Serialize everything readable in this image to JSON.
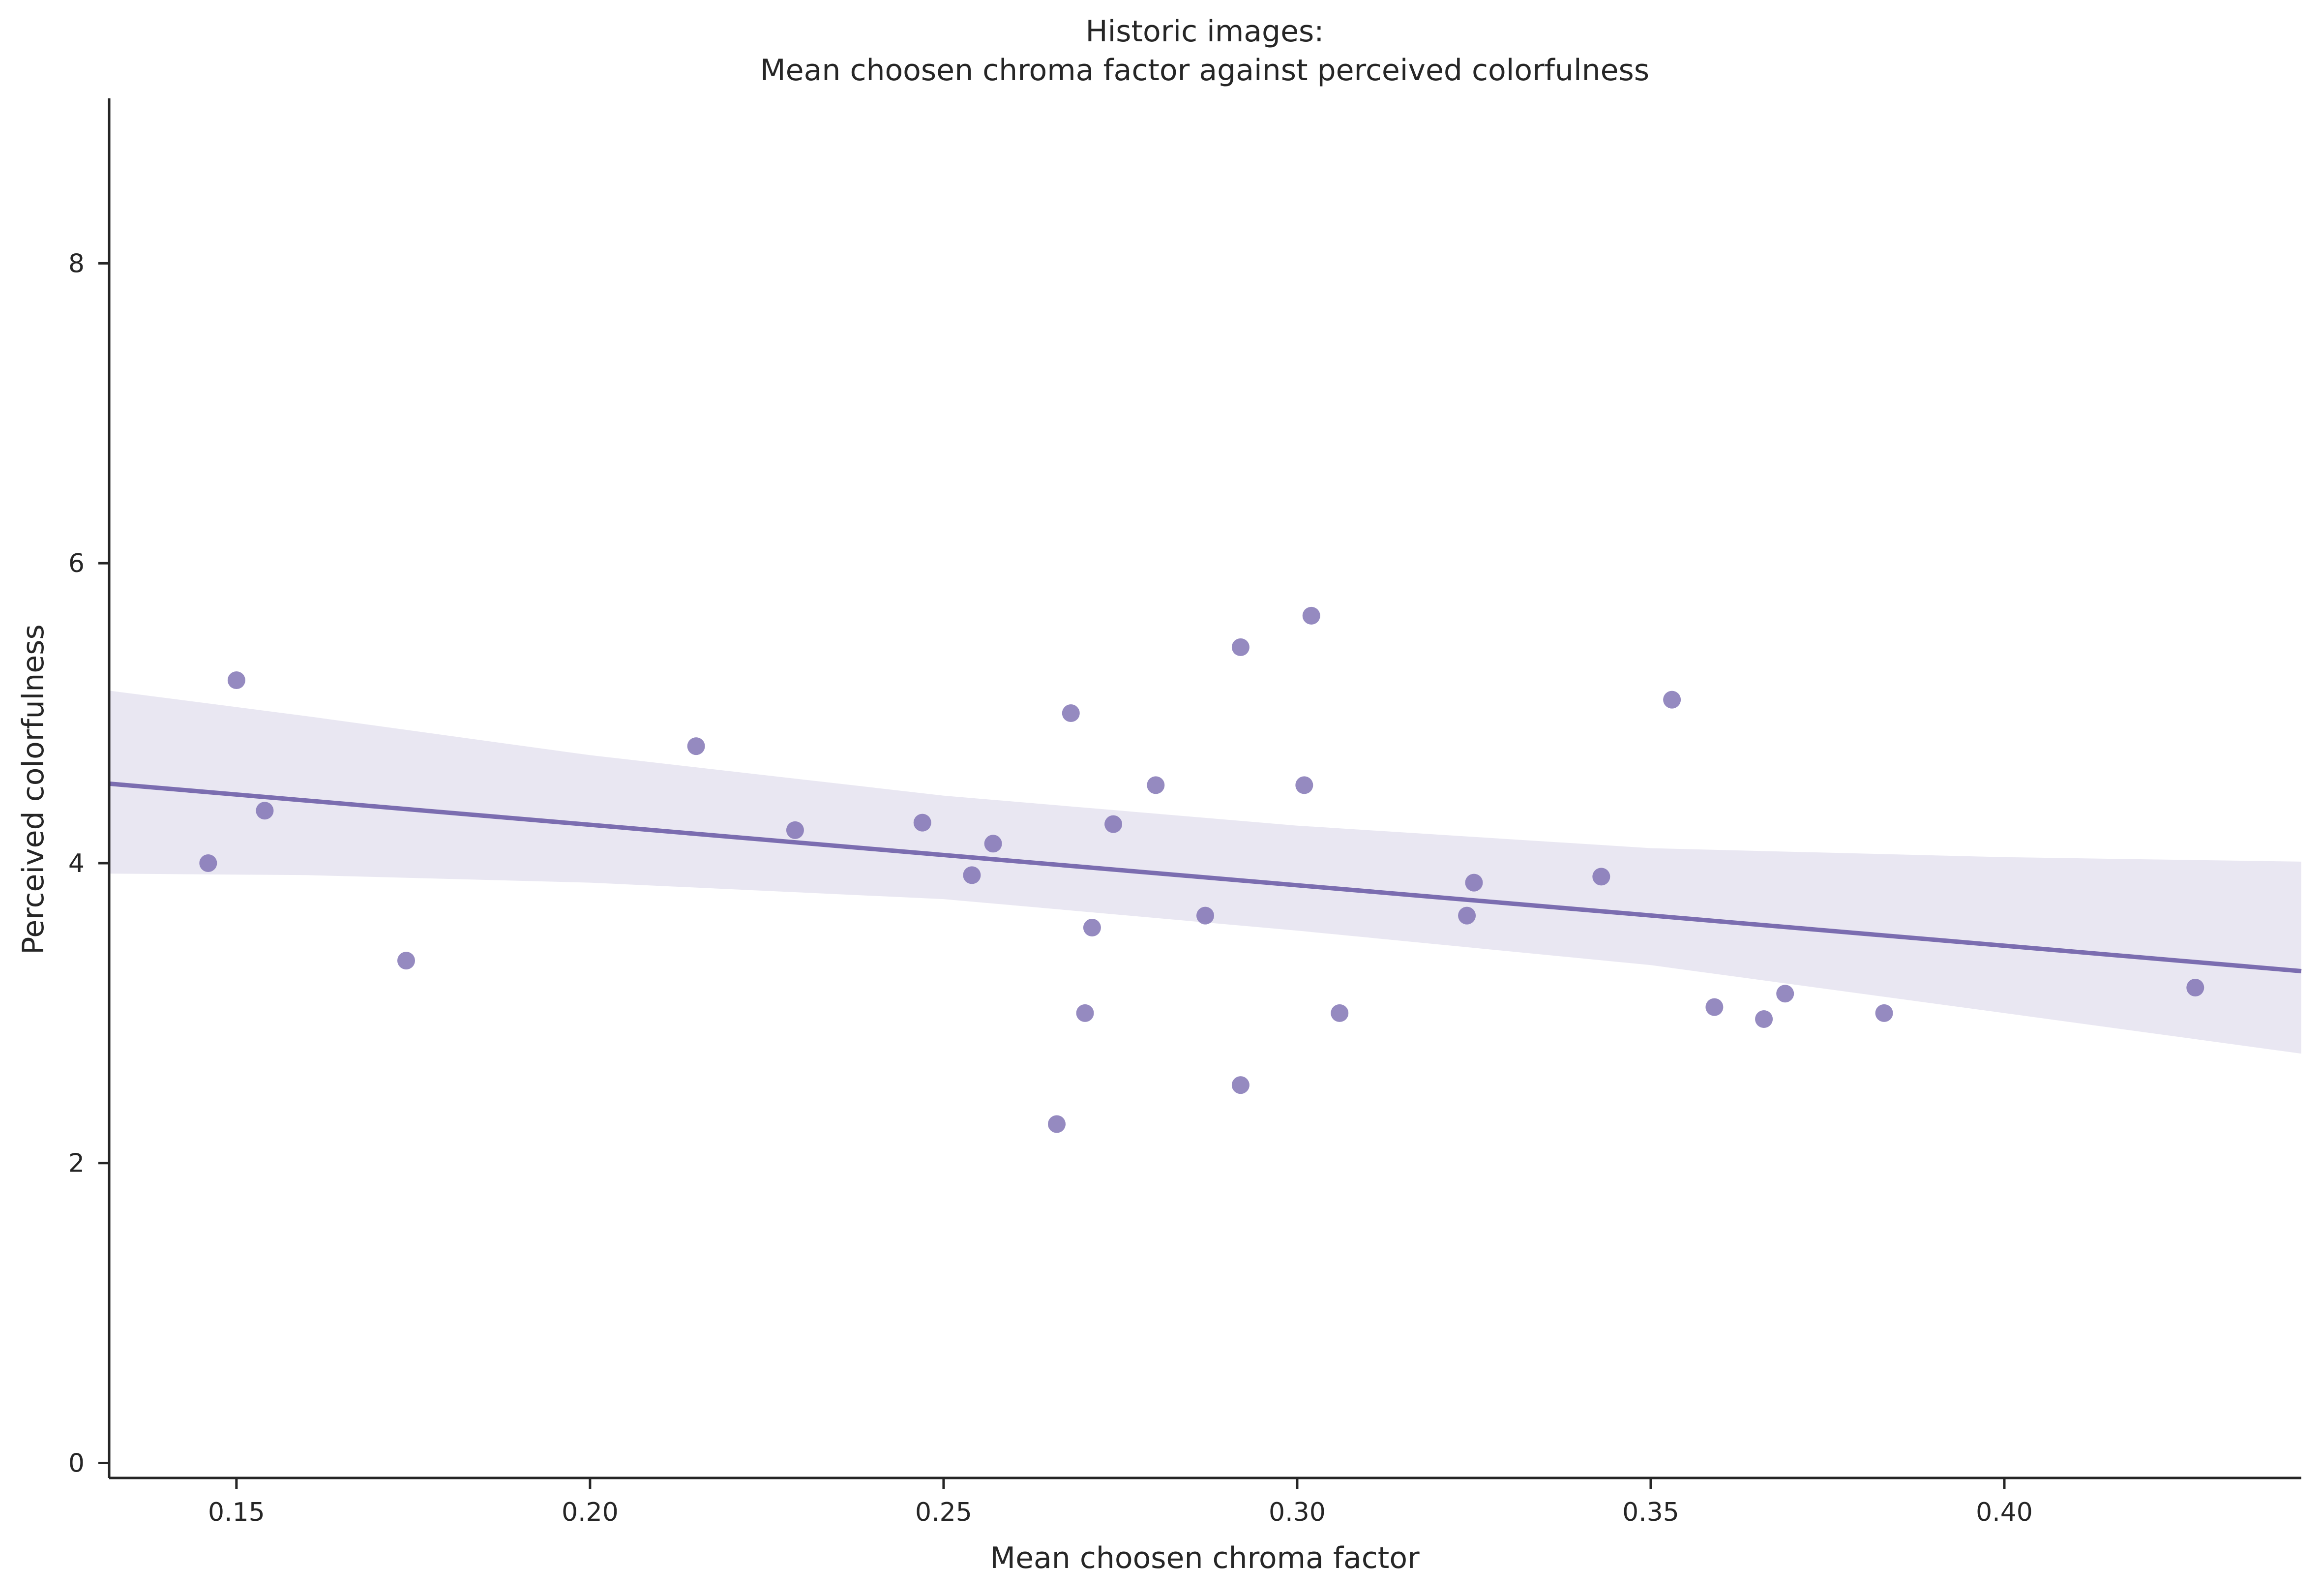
{
  "chart_data": {
    "type": "scatter",
    "title": [
      "Historic images:",
      "Mean choosen chroma factor against perceived colorfulness"
    ],
    "xlabel": "Mean choosen chroma factor",
    "ylabel": "Perceived colorfulness",
    "xlim": [
      0.132,
      0.442
    ],
    "ylim": [
      -0.1,
      9.1
    ],
    "x_ticks": [
      "0.15",
      "0.20",
      "0.25",
      "0.30",
      "0.35",
      "0.40"
    ],
    "x_tick_values": [
      0.15,
      0.2,
      0.25,
      0.3,
      0.35,
      0.4
    ],
    "y_ticks": [
      "0",
      "2",
      "4",
      "6",
      "8"
    ],
    "y_tick_values": [
      0,
      2,
      4,
      6,
      8
    ],
    "grid": false,
    "colors": {
      "points": "#7b6db0",
      "line": "#7b6db0",
      "band": "#e9e7f2",
      "axis": "#262626"
    },
    "points": [
      {
        "x": 0.146,
        "y": 4.0
      },
      {
        "x": 0.15,
        "y": 5.22
      },
      {
        "x": 0.154,
        "y": 4.35
      },
      {
        "x": 0.174,
        "y": 3.35
      },
      {
        "x": 0.215,
        "y": 4.78
      },
      {
        "x": 0.229,
        "y": 4.22
      },
      {
        "x": 0.247,
        "y": 4.27
      },
      {
        "x": 0.254,
        "y": 3.92
      },
      {
        "x": 0.257,
        "y": 4.13
      },
      {
        "x": 0.266,
        "y": 2.26
      },
      {
        "x": 0.268,
        "y": 5.0
      },
      {
        "x": 0.27,
        "y": 3.0
      },
      {
        "x": 0.271,
        "y": 3.57
      },
      {
        "x": 0.274,
        "y": 4.26
      },
      {
        "x": 0.28,
        "y": 4.52
      },
      {
        "x": 0.287,
        "y": 3.65
      },
      {
        "x": 0.292,
        "y": 2.52
      },
      {
        "x": 0.292,
        "y": 5.44
      },
      {
        "x": 0.301,
        "y": 4.52
      },
      {
        "x": 0.302,
        "y": 5.65
      },
      {
        "x": 0.306,
        "y": 3.0
      },
      {
        "x": 0.324,
        "y": 3.65
      },
      {
        "x": 0.325,
        "y": 3.87
      },
      {
        "x": 0.343,
        "y": 3.91
      },
      {
        "x": 0.353,
        "y": 5.09
      },
      {
        "x": 0.359,
        "y": 3.04
      },
      {
        "x": 0.366,
        "y": 2.96
      },
      {
        "x": 0.369,
        "y": 3.13
      },
      {
        "x": 0.383,
        "y": 3.0
      },
      {
        "x": 0.427,
        "y": 3.17
      }
    ],
    "regression": {
      "line": [
        [
          0.132,
          4.53
        ],
        [
          0.442,
          3.28
        ]
      ],
      "ci_upper": [
        [
          0.132,
          5.15
        ],
        [
          0.16,
          4.98
        ],
        [
          0.2,
          4.72
        ],
        [
          0.25,
          4.45
        ],
        [
          0.3,
          4.25
        ],
        [
          0.35,
          4.1
        ],
        [
          0.4,
          4.04
        ],
        [
          0.442,
          4.01
        ]
      ],
      "ci_lower": [
        [
          0.132,
          3.93
        ],
        [
          0.16,
          3.92
        ],
        [
          0.2,
          3.87
        ],
        [
          0.25,
          3.76
        ],
        [
          0.3,
          3.55
        ],
        [
          0.35,
          3.32
        ],
        [
          0.4,
          3.0
        ],
        [
          0.442,
          2.73
        ]
      ]
    }
  }
}
